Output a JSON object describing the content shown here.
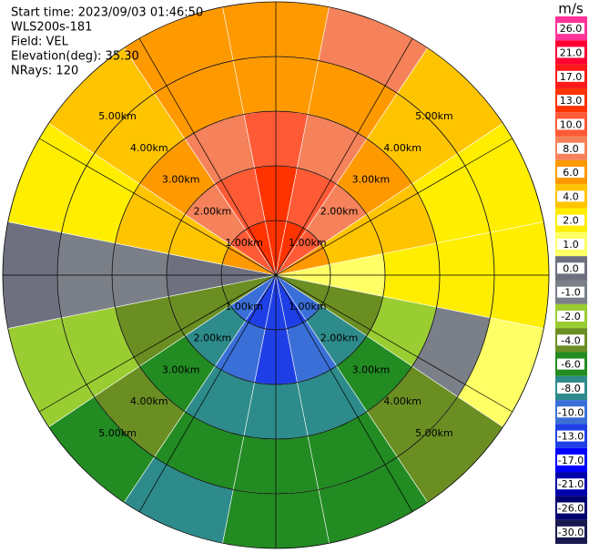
{
  "chart_data": {
    "type": "ppi",
    "header": [
      "Start time: 2023/09/03 01:46:50",
      "WLS200s-181",
      "Field: VEL",
      "Elevation(deg): 35.30",
      "NRays: 120"
    ],
    "units": "m/s",
    "rlim": [
      0,
      5
    ],
    "rings": [
      {
        "value": 1,
        "label": "1.00km"
      },
      {
        "value": 2,
        "label": "2.00km"
      },
      {
        "value": 3,
        "label": "3.00km"
      },
      {
        "value": 4,
        "label": "4.00km"
      },
      {
        "value": 5,
        "label": "5.00km"
      }
    ],
    "azimuths": [
      0,
      22.5,
      45,
      67.5,
      90,
      112.5,
      135,
      157.5,
      180,
      202.5,
      225,
      247.5,
      270,
      292.5,
      315,
      337.5
    ],
    "gates": [
      0,
      1,
      2,
      3,
      4,
      5
    ],
    "values": [
      [
        15,
        14,
        11,
        6,
        1,
        -4,
        -9,
        -12,
        -13,
        -12,
        -9,
        -4,
        0,
        6,
        11,
        14
      ],
      [
        13,
        12,
        9,
        5,
        1,
        -4,
        -8,
        -10,
        -11,
        -10,
        -8,
        -4,
        0,
        5,
        9,
        12
      ],
      [
        10,
        9,
        7,
        4,
        2,
        -2,
        -6,
        -8,
        -8,
        -8,
        -6,
        -3,
        -1,
        4,
        7,
        9
      ],
      [
        7,
        6,
        5,
        3,
        2,
        -1,
        -4,
        -6,
        -6,
        -6,
        -4,
        -2,
        -1,
        2,
        5,
        6
      ],
      [
        6,
        8,
        4,
        3,
        2,
        1,
        -3,
        -6,
        -6,
        -7,
        -5,
        -2,
        0,
        2,
        4,
        7
      ]
    ],
    "colorbar": [
      {
        "value": 26,
        "label": "26.0",
        "color": "#ff3399"
      },
      {
        "value": 21,
        "label": "21.0",
        "color": "#ff0033"
      },
      {
        "value": 17,
        "label": "17.0",
        "color": "#ff1a1a"
      },
      {
        "value": 13,
        "label": "13.0",
        "color": "#ff3300"
      },
      {
        "value": 10,
        "label": "10.0",
        "color": "#ff5a36"
      },
      {
        "value": 8,
        "label": "8.0",
        "color": "#f5825a"
      },
      {
        "value": 6,
        "label": "6.0",
        "color": "#ff9900"
      },
      {
        "value": 4,
        "label": "4.0",
        "color": "#ffc400"
      },
      {
        "value": 2,
        "label": "2.0",
        "color": "#ffee00"
      },
      {
        "value": 1,
        "label": "1.0",
        "color": "#ffff66"
      },
      {
        "value": 0,
        "label": "0.0",
        "color": "#6e7080"
      },
      {
        "value": -1,
        "label": "-1.0",
        "color": "#7a7f88"
      },
      {
        "value": -2,
        "label": "-2.0",
        "color": "#9acd32"
      },
      {
        "value": -4,
        "label": "-4.0",
        "color": "#6b8e23"
      },
      {
        "value": -6,
        "label": "-6.0",
        "color": "#228b22"
      },
      {
        "value": -8,
        "label": "-8.0",
        "color": "#2e8b8b"
      },
      {
        "value": -10,
        "label": "-10.0",
        "color": "#3a6fd8"
      },
      {
        "value": -13,
        "label": "-13.0",
        "color": "#1f3fe6"
      },
      {
        "value": -17,
        "label": "-17.0",
        "color": "#0000ff"
      },
      {
        "value": -21,
        "label": "-21.0",
        "color": "#0000aa"
      },
      {
        "value": -26,
        "label": "-26.0",
        "color": "#000070"
      },
      {
        "value": -30,
        "label": "-30.0",
        "color": "#191950"
      }
    ]
  }
}
